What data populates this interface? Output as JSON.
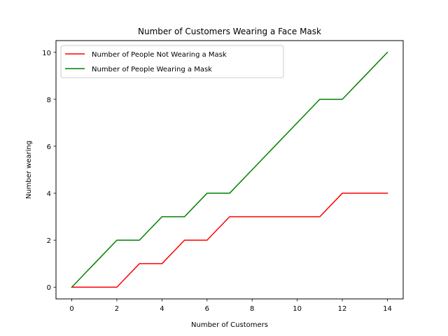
{
  "chart_data": {
    "type": "line",
    "title": "Number of Customers Wearing a Face Mask",
    "xlabel": "Number of Customers",
    "ylabel": "Number wearing",
    "x": [
      0,
      1,
      2,
      3,
      4,
      5,
      6,
      7,
      8,
      9,
      10,
      11,
      12,
      13,
      14
    ],
    "series": [
      {
        "name": "Number of People Not Wearing a Mask",
        "color": "#ff0000",
        "values": [
          0,
          0,
          0,
          1,
          1,
          2,
          2,
          3,
          3,
          3,
          3,
          3,
          4,
          4,
          4
        ]
      },
      {
        "name": "Number of People Wearing a Mask",
        "color": "#008000",
        "values": [
          0,
          1,
          2,
          2,
          3,
          3,
          4,
          4,
          5,
          6,
          7,
          8,
          8,
          9,
          10
        ]
      }
    ],
    "xlim": [
      -0.7,
      14.7
    ],
    "ylim": [
      -0.5,
      10.5
    ],
    "xticks": [
      0,
      2,
      4,
      6,
      8,
      10,
      12,
      14
    ],
    "yticks": [
      0,
      2,
      4,
      6,
      8,
      10
    ],
    "grid": false,
    "legend_position": "top-left"
  }
}
